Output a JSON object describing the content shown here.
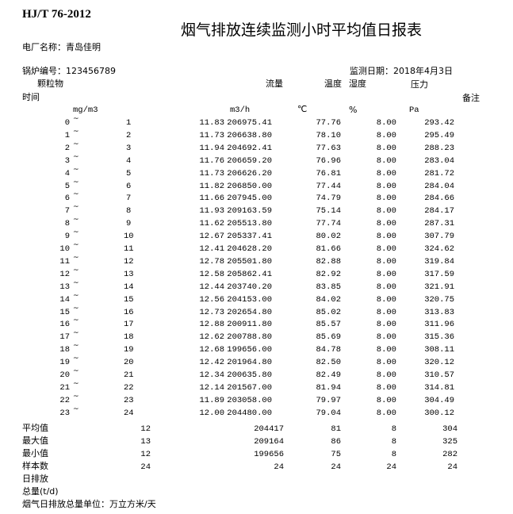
{
  "header": {
    "standard": "HJ/T 76-2012",
    "title": "烟气排放连续监测小时平均值日报表",
    "plant_label": "电厂名称：青岛佳明",
    "boiler_label": "锅炉编号：123456789",
    "date_label": "监测日期：2018年4月3日"
  },
  "columns": {
    "particulate": "颗粒物",
    "flow": "流量",
    "temperature": "温度",
    "humidity": "湿度",
    "pressure": "压力",
    "time": "时间",
    "remark": "备注",
    "units": {
      "particulate": "mg/m3",
      "flow": "m3/h",
      "temperature": "℃",
      "humidity": "%",
      "pressure": "Pa"
    }
  },
  "rows": [
    {
      "start": "0",
      "end": "1",
      "pm": "11.83",
      "flow": "206975.41",
      "temp": "77.76",
      "hum": "8.00",
      "pres": "293.42"
    },
    {
      "start": "1",
      "end": "2",
      "pm": "11.73",
      "flow": "206638.80",
      "temp": "78.10",
      "hum": "8.00",
      "pres": "295.49"
    },
    {
      "start": "2",
      "end": "3",
      "pm": "11.94",
      "flow": "204692.41",
      "temp": "77.63",
      "hum": "8.00",
      "pres": "288.23"
    },
    {
      "start": "3",
      "end": "4",
      "pm": "11.76",
      "flow": "206659.20",
      "temp": "76.96",
      "hum": "8.00",
      "pres": "283.04"
    },
    {
      "start": "4",
      "end": "5",
      "pm": "11.73",
      "flow": "206626.20",
      "temp": "76.81",
      "hum": "8.00",
      "pres": "281.72"
    },
    {
      "start": "5",
      "end": "6",
      "pm": "11.82",
      "flow": "206850.00",
      "temp": "77.44",
      "hum": "8.00",
      "pres": "284.04"
    },
    {
      "start": "6",
      "end": "7",
      "pm": "11.66",
      "flow": "207945.00",
      "temp": "74.79",
      "hum": "8.00",
      "pres": "284.66"
    },
    {
      "start": "7",
      "end": "8",
      "pm": "11.93",
      "flow": "209163.59",
      "temp": "75.14",
      "hum": "8.00",
      "pres": "284.17"
    },
    {
      "start": "8",
      "end": "9",
      "pm": "11.62",
      "flow": "205513.80",
      "temp": "77.74",
      "hum": "8.00",
      "pres": "287.31"
    },
    {
      "start": "9",
      "end": "10",
      "pm": "12.67",
      "flow": "205337.41",
      "temp": "80.02",
      "hum": "8.00",
      "pres": "307.79"
    },
    {
      "start": "10",
      "end": "11",
      "pm": "12.41",
      "flow": "204628.20",
      "temp": "81.66",
      "hum": "8.00",
      "pres": "324.62"
    },
    {
      "start": "11",
      "end": "12",
      "pm": "12.78",
      "flow": "205501.80",
      "temp": "82.88",
      "hum": "8.00",
      "pres": "319.84"
    },
    {
      "start": "12",
      "end": "13",
      "pm": "12.58",
      "flow": "205862.41",
      "temp": "82.92",
      "hum": "8.00",
      "pres": "317.59"
    },
    {
      "start": "13",
      "end": "14",
      "pm": "12.44",
      "flow": "203740.20",
      "temp": "83.85",
      "hum": "8.00",
      "pres": "321.91"
    },
    {
      "start": "14",
      "end": "15",
      "pm": "12.56",
      "flow": "204153.00",
      "temp": "84.02",
      "hum": "8.00",
      "pres": "320.75"
    },
    {
      "start": "15",
      "end": "16",
      "pm": "12.73",
      "flow": "202654.80",
      "temp": "85.02",
      "hum": "8.00",
      "pres": "313.83"
    },
    {
      "start": "16",
      "end": "17",
      "pm": "12.88",
      "flow": "200911.80",
      "temp": "85.57",
      "hum": "8.00",
      "pres": "311.96"
    },
    {
      "start": "17",
      "end": "18",
      "pm": "12.62",
      "flow": "200788.80",
      "temp": "85.69",
      "hum": "8.00",
      "pres": "315.36"
    },
    {
      "start": "18",
      "end": "19",
      "pm": "12.68",
      "flow": "199656.00",
      "temp": "84.78",
      "hum": "8.00",
      "pres": "308.11"
    },
    {
      "start": "19",
      "end": "20",
      "pm": "12.42",
      "flow": "201964.80",
      "temp": "82.50",
      "hum": "8.00",
      "pres": "320.12"
    },
    {
      "start": "20",
      "end": "21",
      "pm": "12.34",
      "flow": "200635.80",
      "temp": "82.49",
      "hum": "8.00",
      "pres": "310.57"
    },
    {
      "start": "21",
      "end": "22",
      "pm": "12.14",
      "flow": "201567.00",
      "temp": "81.94",
      "hum": "8.00",
      "pres": "314.81"
    },
    {
      "start": "22",
      "end": "23",
      "pm": "11.89",
      "flow": "203058.00",
      "temp": "79.97",
      "hum": "8.00",
      "pres": "304.49"
    },
    {
      "start": "23",
      "end": "24",
      "pm": "12.00",
      "flow": "204480.00",
      "temp": "79.04",
      "hum": "8.00",
      "pres": "300.12"
    }
  ],
  "separator": "~",
  "summary": [
    {
      "label": "平均值",
      "pm": "12",
      "flow": "204417",
      "temp": "81",
      "hum": "8",
      "pres": "304"
    },
    {
      "label": "最大值",
      "pm": "13",
      "flow": "209164",
      "temp": "86",
      "hum": "8",
      "pres": "325"
    },
    {
      "label": "最小值",
      "pm": "12",
      "flow": "199656",
      "temp": "75",
      "hum": "8",
      "pres": "282"
    },
    {
      "label": "样本数",
      "pm": "24",
      "flow": "24",
      "temp": "24",
      "hum": "24",
      "pres": "24"
    }
  ],
  "footer": {
    "daily_emission_1": "日排放",
    "daily_emission_2": "总量(t/d)",
    "unit_note": "烟气日排放总量单位：万立方米/天"
  }
}
